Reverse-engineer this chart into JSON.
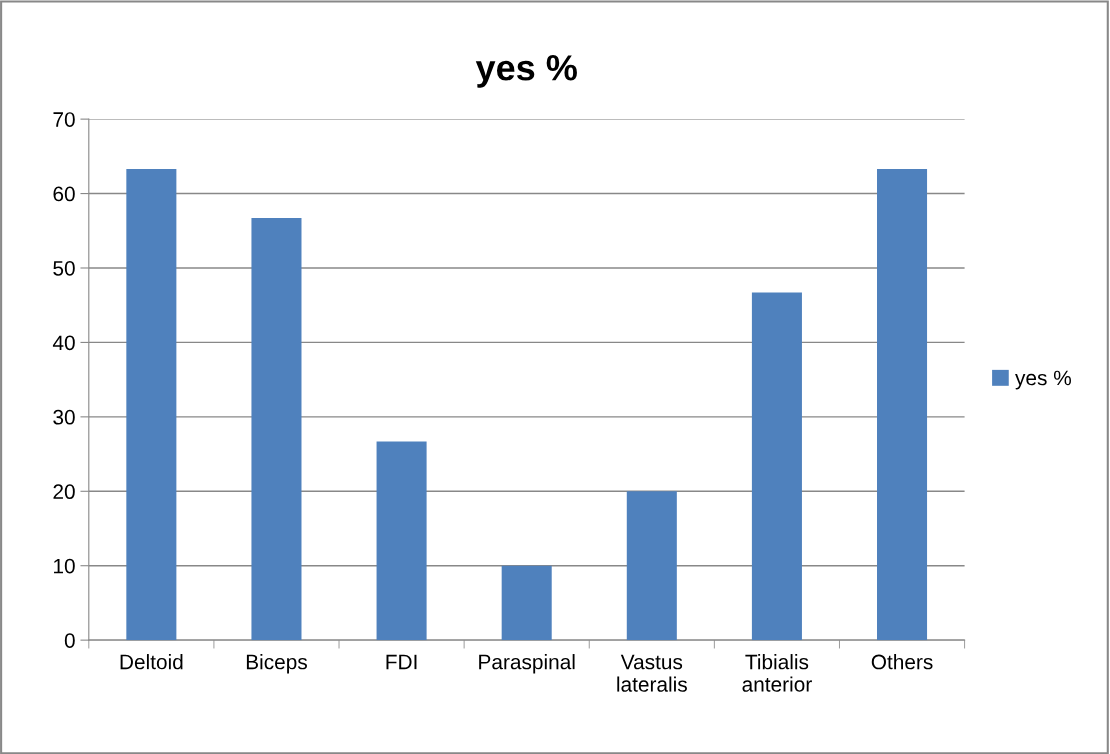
{
  "chart_data": {
    "type": "bar",
    "title": "yes %",
    "categories": [
      "Deltoid",
      "Biceps",
      "FDI",
      "Paraspinal",
      "Vastus\nlateralis",
      "Tibialis\nanterior",
      "Others"
    ],
    "series": [
      {
        "name": "yes %",
        "color": "#4f81bd",
        "values": [
          63.3,
          56.7,
          26.7,
          10,
          20,
          46.7,
          63.3
        ]
      }
    ],
    "ylim": [
      0,
      70
    ],
    "yticks": [
      0,
      10,
      20,
      30,
      40,
      50,
      60,
      70
    ],
    "grid": "y",
    "legend": "right"
  }
}
